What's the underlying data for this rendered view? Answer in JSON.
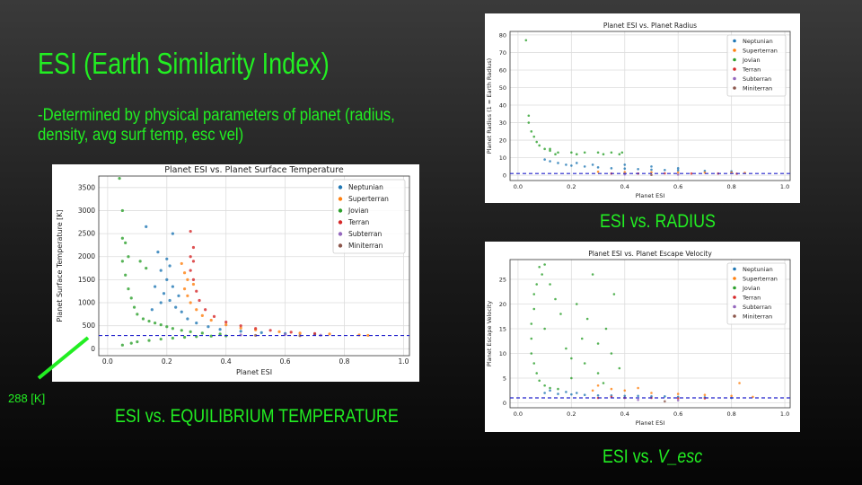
{
  "slide": {
    "title": "ESI (Earth Similarity Index)",
    "subtitle": "-Determined by physical parameters of planet (radius, density, avg surf temp, esc vel)",
    "accent_color": "#22ee22",
    "annotation_label": "288 [K]",
    "captions": {
      "temperature": "ESI vs. EQUILIBRIUM TEMPERATURE",
      "radius": "ESI vs. RADIUS",
      "velocity_prefix": "ESI vs. ",
      "velocity_var": "V_esc"
    }
  },
  "series_colors": {
    "Neptunian": "#1f77b4",
    "Superterran": "#ff7f0e",
    "Jovian": "#2ca02c",
    "Terran": "#d62728",
    "Subterran": "#9467bd",
    "Miniterran": "#8c564b"
  },
  "chart_data": [
    {
      "type": "scatter",
      "title": "Planet ESI vs. Planet Surface Temperature",
      "xlabel": "Planet ESI",
      "ylabel": "Planet Surface Temperature [K]",
      "xlim": [
        -0.03,
        1.02
      ],
      "ylim": [
        -150,
        3750
      ],
      "xticks": [
        0.0,
        0.2,
        0.4,
        0.6,
        0.8,
        1.0
      ],
      "yticks": [
        0,
        500,
        1000,
        1500,
        2000,
        2500,
        3000,
        3500
      ],
      "grid": true,
      "legend_position": "top-right",
      "legend": [
        "Neptunian",
        "Superterran",
        "Jovian",
        "Terran",
        "Subterran",
        "Miniterran"
      ],
      "reference_line": {
        "y": 288,
        "style": "dashed",
        "color": "#2222cc"
      },
      "series": [
        {
          "name": "Jovian",
          "points": [
            [
              0.04,
              3700
            ],
            [
              0.05,
              3000
            ],
            [
              0.05,
              2400
            ],
            [
              0.06,
              2300
            ],
            [
              0.05,
              1900
            ],
            [
              0.06,
              1600
            ],
            [
              0.07,
              1300
            ],
            [
              0.08,
              1100
            ],
            [
              0.09,
              900
            ],
            [
              0.1,
              750
            ],
            [
              0.12,
              650
            ],
            [
              0.14,
              600
            ],
            [
              0.16,
              560
            ],
            [
              0.18,
              520
            ],
            [
              0.2,
              480
            ],
            [
              0.22,
              440
            ],
            [
              0.25,
              400
            ],
            [
              0.28,
              370
            ],
            [
              0.32,
              340
            ],
            [
              0.38,
              320
            ],
            [
              0.05,
              80
            ],
            [
              0.08,
              120
            ],
            [
              0.1,
              150
            ],
            [
              0.14,
              180
            ],
            [
              0.18,
              210
            ],
            [
              0.22,
              230
            ],
            [
              0.26,
              250
            ],
            [
              0.3,
              265
            ],
            [
              0.35,
              275
            ],
            [
              0.4,
              280
            ],
            [
              0.11,
              1900
            ],
            [
              0.13,
              1750
            ],
            [
              0.07,
              2000
            ]
          ]
        },
        {
          "name": "Neptunian",
          "points": [
            [
              0.13,
              2650
            ],
            [
              0.17,
              2100
            ],
            [
              0.2,
              1950
            ],
            [
              0.21,
              1800
            ],
            [
              0.18,
              1700
            ],
            [
              0.2,
              1500
            ],
            [
              0.22,
              1350
            ],
            [
              0.19,
              1200
            ],
            [
              0.21,
              1050
            ],
            [
              0.23,
              900
            ],
            [
              0.25,
              800
            ],
            [
              0.27,
              650
            ],
            [
              0.3,
              560
            ],
            [
              0.34,
              480
            ],
            [
              0.38,
              420
            ],
            [
              0.45,
              380
            ],
            [
              0.52,
              350
            ],
            [
              0.6,
              330
            ],
            [
              0.7,
              310
            ],
            [
              0.16,
              1350
            ],
            [
              0.18,
              1000
            ],
            [
              0.15,
              850
            ],
            [
              0.24,
              1150
            ],
            [
              0.22,
              2500
            ]
          ]
        },
        {
          "name": "Superterran",
          "points": [
            [
              0.25,
              1850
            ],
            [
              0.26,
              1650
            ],
            [
              0.27,
              1500
            ],
            [
              0.26,
              1300
            ],
            [
              0.27,
              1150
            ],
            [
              0.28,
              1000
            ],
            [
              0.3,
              850
            ],
            [
              0.32,
              720
            ],
            [
              0.35,
              620
            ],
            [
              0.4,
              520
            ],
            [
              0.45,
              450
            ],
            [
              0.5,
              410
            ],
            [
              0.58,
              370
            ],
            [
              0.65,
              340
            ],
            [
              0.75,
              320
            ],
            [
              0.85,
              300
            ],
            [
              0.88,
              290
            ],
            [
              0.29,
              1400
            ]
          ]
        },
        {
          "name": "Terran",
          "points": [
            [
              0.28,
              2550
            ],
            [
              0.29,
              2200
            ],
            [
              0.29,
              1900
            ],
            [
              0.28,
              1700
            ],
            [
              0.29,
              1500
            ],
            [
              0.3,
              1250
            ],
            [
              0.31,
              1050
            ],
            [
              0.33,
              850
            ],
            [
              0.36,
              700
            ],
            [
              0.4,
              580
            ],
            [
              0.45,
              500
            ],
            [
              0.5,
              440
            ],
            [
              0.55,
              400
            ],
            [
              0.62,
              360
            ],
            [
              0.7,
              330
            ],
            [
              0.28,
              2000
            ]
          ]
        },
        {
          "name": "Subterran",
          "points": [
            [
              0.45,
              300
            ],
            [
              0.6,
              310
            ],
            [
              0.72,
              295
            ]
          ]
        },
        {
          "name": "Miniterran",
          "points": [
            [
              0.5,
              290
            ],
            [
              0.65,
              285
            ]
          ]
        }
      ]
    },
    {
      "type": "scatter",
      "title": "Planet ESI vs. Planet Radius",
      "xlabel": "Planet ESI",
      "ylabel": "Planet Radius (1 = Earth Radius)",
      "xlim": [
        -0.03,
        1.02
      ],
      "ylim": [
        -3,
        82
      ],
      "xticks": [
        0.0,
        0.2,
        0.4,
        0.6,
        0.8,
        1.0
      ],
      "yticks": [
        0,
        10,
        20,
        30,
        40,
        50,
        60,
        70,
        80
      ],
      "grid": true,
      "legend_position": "top-right",
      "legend": [
        "Neptunian",
        "Superterran",
        "Jovian",
        "Terran",
        "Subterran",
        "Miniterran"
      ],
      "reference_line": {
        "y": 1,
        "style": "dashed",
        "color": "#2222cc"
      },
      "series": [
        {
          "name": "Jovian",
          "points": [
            [
              0.03,
              77
            ],
            [
              0.04,
              34
            ],
            [
              0.04,
              30
            ],
            [
              0.05,
              25
            ],
            [
              0.06,
              22
            ],
            [
              0.07,
              19
            ],
            [
              0.08,
              17
            ],
            [
              0.1,
              15
            ],
            [
              0.12,
              14
            ],
            [
              0.15,
              13
            ],
            [
              0.2,
              13
            ],
            [
              0.25,
              13
            ],
            [
              0.3,
              13
            ],
            [
              0.35,
              13
            ],
            [
              0.39,
              13
            ],
            [
              0.14,
              12
            ],
            [
              0.22,
              12
            ],
            [
              0.32,
              12
            ],
            [
              0.38,
              12
            ],
            [
              0.12,
              15
            ]
          ]
        },
        {
          "name": "Neptunian",
          "points": [
            [
              0.1,
              9
            ],
            [
              0.12,
              8
            ],
            [
              0.15,
              7
            ],
            [
              0.18,
              6
            ],
            [
              0.2,
              5.5
            ],
            [
              0.25,
              5
            ],
            [
              0.3,
              4.5
            ],
            [
              0.35,
              4
            ],
            [
              0.4,
              3.8
            ],
            [
              0.45,
              3.5
            ],
            [
              0.5,
              3.2
            ],
            [
              0.55,
              3
            ],
            [
              0.6,
              2.8
            ],
            [
              0.7,
              2.5
            ],
            [
              0.8,
              2.2
            ],
            [
              0.22,
              7
            ],
            [
              0.28,
              6
            ],
            [
              0.4,
              6
            ],
            [
              0.5,
              5
            ],
            [
              0.6,
              4
            ]
          ]
        },
        {
          "name": "Superterran",
          "points": [
            [
              0.3,
              2
            ],
            [
              0.4,
              1.8
            ],
            [
              0.5,
              1.7
            ],
            [
              0.6,
              1.6
            ],
            [
              0.7,
              1.5
            ],
            [
              0.8,
              1.5
            ],
            [
              0.85,
              1.4
            ]
          ]
        },
        {
          "name": "Terran",
          "points": [
            [
              0.35,
              1
            ],
            [
              0.45,
              1
            ],
            [
              0.55,
              1.1
            ],
            [
              0.65,
              1
            ],
            [
              0.75,
              1
            ],
            [
              0.82,
              0.9
            ]
          ]
        },
        {
          "name": "Subterran",
          "points": [
            [
              0.4,
              0.5
            ],
            [
              0.6,
              0.4
            ]
          ]
        },
        {
          "name": "Miniterran",
          "points": [
            [
              0.5,
              0.2
            ]
          ]
        }
      ]
    },
    {
      "type": "scatter",
      "title": "Planet ESI vs. Planet Escape Velocity",
      "xlabel": "Planet ESI",
      "ylabel": "Planet Escape Velocity",
      "xlim": [
        -0.03,
        1.02
      ],
      "ylim": [
        -1,
        29
      ],
      "xticks": [
        0.0,
        0.2,
        0.4,
        0.6,
        0.8,
        1.0
      ],
      "yticks": [
        0,
        5,
        10,
        15,
        20,
        25
      ],
      "grid": true,
      "legend_position": "top-right",
      "legend": [
        "Neptunian",
        "Superterran",
        "Jovian",
        "Terran",
        "Subterran",
        "Miniterran"
      ],
      "reference_line": {
        "y": 1,
        "style": "dashed",
        "color": "#2222cc"
      },
      "series": [
        {
          "name": "Jovian",
          "points": [
            [
              0.08,
              27.5
            ],
            [
              0.1,
              28
            ],
            [
              0.09,
              26
            ],
            [
              0.07,
              24
            ],
            [
              0.06,
              22
            ],
            [
              0.06,
              19
            ],
            [
              0.05,
              16
            ],
            [
              0.05,
              13
            ],
            [
              0.05,
              10
            ],
            [
              0.06,
              8
            ],
            [
              0.07,
              6
            ],
            [
              0.08,
              4.5
            ],
            [
              0.1,
              3.5
            ],
            [
              0.12,
              3
            ],
            [
              0.15,
              2.8
            ],
            [
              0.2,
              5
            ],
            [
              0.25,
              8
            ],
            [
              0.28,
              26
            ],
            [
              0.3,
              12
            ],
            [
              0.33,
              15
            ],
            [
              0.35,
              10
            ],
            [
              0.38,
              7
            ],
            [
              0.14,
              21
            ],
            [
              0.16,
              18
            ],
            [
              0.12,
              24
            ],
            [
              0.22,
              20
            ],
            [
              0.26,
              17
            ],
            [
              0.18,
              11
            ],
            [
              0.3,
              6
            ],
            [
              0.36,
              22
            ],
            [
              0.24,
              13
            ],
            [
              0.1,
              15
            ],
            [
              0.2,
              9
            ],
            [
              0.32,
              4
            ]
          ]
        },
        {
          "name": "Neptunian",
          "points": [
            [
              0.1,
              2
            ],
            [
              0.15,
              1.8
            ],
            [
              0.2,
              1.7
            ],
            [
              0.25,
              1.6
            ],
            [
              0.3,
              1.5
            ],
            [
              0.35,
              1.5
            ],
            [
              0.4,
              1.4
            ],
            [
              0.45,
              1.4
            ],
            [
              0.5,
              1.3
            ],
            [
              0.55,
              1.3
            ],
            [
              0.6,
              1.2
            ],
            [
              0.7,
              1.1
            ],
            [
              0.8,
              1
            ],
            [
              0.12,
              2.5
            ],
            [
              0.18,
              2.2
            ],
            [
              0.22,
              2
            ]
          ]
        },
        {
          "name": "Superterran",
          "points": [
            [
              0.28,
              2.5
            ],
            [
              0.3,
              3.5
            ],
            [
              0.35,
              2.8
            ],
            [
              0.4,
              2.5
            ],
            [
              0.5,
              2
            ],
            [
              0.6,
              1.8
            ],
            [
              0.7,
              1.6
            ],
            [
              0.8,
              1.4
            ],
            [
              0.83,
              4
            ],
            [
              0.88,
              1.2
            ],
            [
              0.45,
              3
            ]
          ]
        },
        {
          "name": "Terran",
          "points": [
            [
              0.3,
              1
            ],
            [
              0.4,
              1
            ],
            [
              0.5,
              1
            ],
            [
              0.6,
              0.9
            ],
            [
              0.7,
              0.9
            ],
            [
              0.35,
              1.2
            ]
          ]
        },
        {
          "name": "Subterran",
          "points": [
            [
              0.45,
              0.6
            ],
            [
              0.6,
              0.5
            ]
          ]
        },
        {
          "name": "Miniterran",
          "points": [
            [
              0.55,
              0.3
            ]
          ]
        }
      ]
    }
  ]
}
